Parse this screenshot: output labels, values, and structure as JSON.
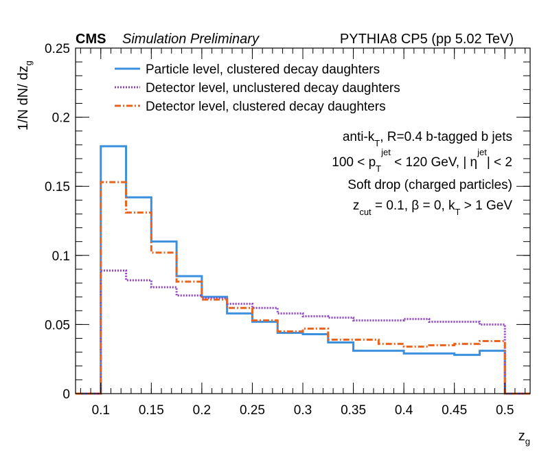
{
  "header": {
    "experiment": "CMS",
    "status": "Simulation Preliminary",
    "generator": "PYTHIA8 CP5 (pp 5.02 TeV)"
  },
  "annotations": [
    {
      "parts": [
        {
          "t": "anti-k"
        },
        {
          "t": "T",
          "sub": true
        },
        {
          "t": ", R=0.4 b-tagged b jets"
        }
      ]
    },
    {
      "parts": [
        {
          "t": "100 < p"
        },
        {
          "t": "T",
          "sub": true
        },
        {
          "t": "jet",
          "sup": true
        },
        {
          "t": " < 120 GeV, | η"
        },
        {
          "t": "jet",
          "sup": true
        },
        {
          "t": "| < 2"
        }
      ]
    },
    {
      "parts": [
        {
          "t": "Soft drop (charged particles)"
        }
      ]
    },
    {
      "parts": [
        {
          "t": "z"
        },
        {
          "t": "cut",
          "sub": true
        },
        {
          "t": " = 0.1,  β = 0, k"
        },
        {
          "t": "T",
          "sub": true
        },
        {
          "t": " > 1 GeV"
        }
      ]
    }
  ],
  "chart_data": {
    "type": "line",
    "style": "step-histogram",
    "title": "",
    "xlabel": {
      "main": "z",
      "sub": "g"
    },
    "ylabel": {
      "main": "1/N dN/ dz",
      "sub": "g"
    },
    "xlim": [
      0.075,
      0.525
    ],
    "ylim": [
      0,
      0.25
    ],
    "xticks": [
      0.1,
      0.15,
      0.2,
      0.25,
      0.3,
      0.35,
      0.4,
      0.45,
      0.5
    ],
    "xtick_labels": [
      "0.1",
      "0.15",
      "0.2",
      "0.25",
      "0.3",
      "0.35",
      "0.4",
      "0.45",
      "0.5"
    ],
    "yticks": [
      0,
      0.05,
      0.1,
      0.15,
      0.2,
      0.25
    ],
    "ytick_labels": [
      "0",
      "0.05",
      "0.1",
      "0.15",
      "0.2",
      "0.25"
    ],
    "legend_position": "top-left",
    "bin_edges": [
      0.075,
      0.1,
      0.125,
      0.15,
      0.175,
      0.2,
      0.225,
      0.25,
      0.275,
      0.3,
      0.325,
      0.35,
      0.375,
      0.4,
      0.425,
      0.45,
      0.475,
      0.5,
      0.525
    ],
    "series": [
      {
        "name": "Particle level, clustered decay daughters",
        "color": "#3a8fde",
        "dash": "solid",
        "values": [
          0,
          0.179,
          0.142,
          0.11,
          0.085,
          0.07,
          0.058,
          0.052,
          0.044,
          0.043,
          0.037,
          0.031,
          0.031,
          0.029,
          0.029,
          0.028,
          0.031,
          0
        ]
      },
      {
        "name": "Detector level, unclustered decay daughters",
        "color": "#8c3fc8",
        "dash": "dotted",
        "values": [
          0,
          0.089,
          0.082,
          0.077,
          0.071,
          0.069,
          0.065,
          0.062,
          0.058,
          0.056,
          0.055,
          0.053,
          0.053,
          0.054,
          0.052,
          0.052,
          0.05,
          0
        ]
      },
      {
        "name": "Detector level, clustered decay daughters",
        "color": "#e8641e",
        "dash": "dashdot",
        "values": [
          0,
          0.153,
          0.131,
          0.102,
          0.081,
          0.068,
          0.062,
          0.053,
          0.045,
          0.047,
          0.039,
          0.039,
          0.036,
          0.034,
          0.035,
          0.036,
          0.038,
          0
        ]
      }
    ]
  }
}
